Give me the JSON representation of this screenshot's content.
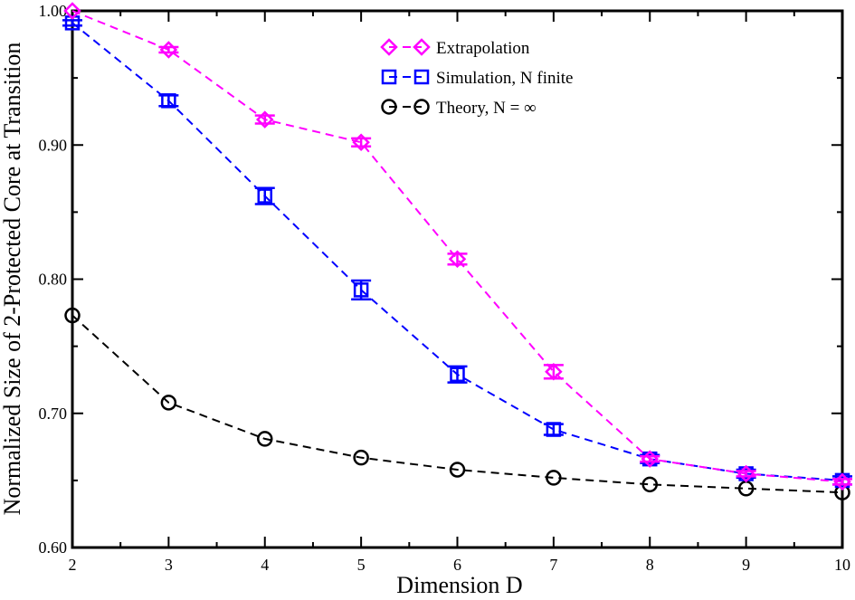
{
  "chart_data": {
    "type": "line",
    "title": "",
    "xlabel": "Dimension D",
    "ylabel": "Normalized Size of 2-Protected Core at Transition",
    "xlim": [
      2,
      10
    ],
    "ylim": [
      0.6,
      1.0
    ],
    "xticks": [
      2,
      3,
      4,
      5,
      6,
      7,
      8,
      9,
      10
    ],
    "yticks": [
      0.6,
      0.7,
      0.8,
      0.9,
      1.0
    ],
    "ytick_labels": [
      "0.60",
      "0.70",
      "0.80",
      "0.90",
      "1.00"
    ],
    "x": [
      2,
      3,
      4,
      5,
      6,
      7,
      8,
      9,
      10
    ],
    "legend_position": "top-center",
    "series": [
      {
        "name": "Extrapolation",
        "color": "#ff00ff",
        "marker": "diamond",
        "values": [
          1.0,
          0.971,
          0.919,
          0.902,
          0.815,
          0.731,
          0.666,
          0.655,
          0.649
        ],
        "errors": [
          0.0,
          0.002,
          0.003,
          0.003,
          0.004,
          0.005,
          0.002,
          0.002,
          0.002
        ]
      },
      {
        "name": "Simulation, N finite",
        "color": "#0000ff",
        "marker": "square",
        "values": [
          0.991,
          0.933,
          0.862,
          0.792,
          0.729,
          0.688,
          0.666,
          0.655,
          0.65
        ],
        "errors": [
          0.002,
          0.004,
          0.006,
          0.007,
          0.006,
          0.004,
          0.003,
          0.003,
          0.003
        ]
      },
      {
        "name": "Theory, N = ∞",
        "color": "#000000",
        "marker": "circle",
        "values": [
          0.773,
          0.708,
          0.681,
          0.667,
          0.658,
          0.652,
          0.647,
          0.644,
          0.641
        ],
        "errors": [
          0,
          0,
          0,
          0,
          0,
          0,
          0,
          0,
          0
        ]
      }
    ]
  }
}
